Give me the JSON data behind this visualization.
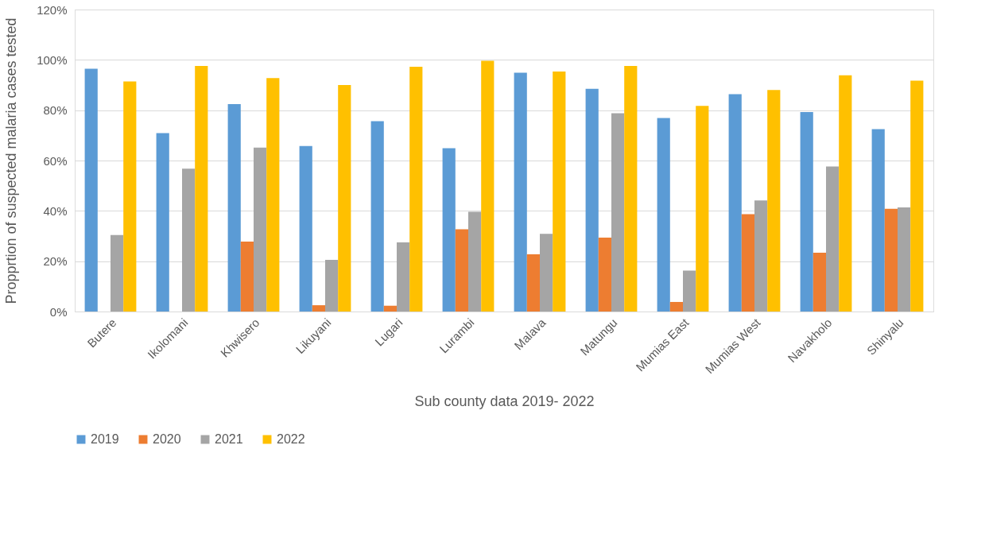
{
  "chart_data": {
    "type": "bar",
    "xlabel": "Sub county  data 2019- 2022",
    "ylabel": "Propprtion of suspected malaria cases tested",
    "categories": [
      "Butere",
      "Ikolomani",
      "Khwisero",
      "Likuyani",
      "Lugari",
      "Lurambi",
      "Malava",
      "Matungu",
      "Mumias East",
      "Mumias West",
      "Navakholo",
      "Shinyalu"
    ],
    "series": [
      {
        "name": "2019",
        "color": "#5b9bd5",
        "values": [
          96.5,
          70.9,
          82.4,
          65.8,
          75.6,
          64.9,
          94.9,
          88.5,
          76.9,
          86.4,
          79.3,
          72.5
        ]
      },
      {
        "name": "2020",
        "color": "#ed7d31",
        "values": [
          null,
          null,
          27.8,
          2.5,
          2.3,
          32.7,
          22.7,
          29.4,
          3.8,
          38.7,
          23.4,
          40.8
        ]
      },
      {
        "name": "2021",
        "color": "#a5a5a5",
        "values": [
          30.4,
          56.8,
          65.1,
          20.5,
          27.5,
          39.6,
          30.9,
          78.8,
          16.3,
          44.1,
          57.6,
          41.4
        ]
      },
      {
        "name": "2022",
        "color": "#ffc000",
        "values": [
          91.4,
          97.6,
          92.8,
          90.0,
          97.3,
          99.6,
          95.4,
          97.6,
          81.7,
          88.0,
          93.9,
          91.7
        ]
      }
    ],
    "ylim": [
      0,
      120
    ],
    "yticks": [
      {
        "value": 0,
        "label": "0%"
      },
      {
        "value": 20,
        "label": "20%"
      },
      {
        "value": 40,
        "label": "40%"
      },
      {
        "value": 60,
        "label": "60%"
      },
      {
        "value": 80,
        "label": "80%"
      },
      {
        "value": 100,
        "label": "100%"
      },
      {
        "value": 120,
        "label": "120%"
      }
    ],
    "grid": "y",
    "legend": "bottom"
  }
}
